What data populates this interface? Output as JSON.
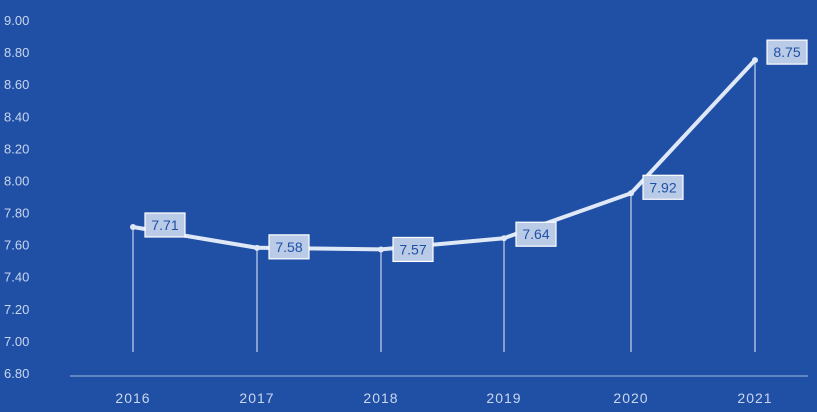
{
  "colors": {
    "background": "#2050a6",
    "line": "#dfe8f7",
    "tick_text": "#c9d6ee",
    "label_box": "#b9cbe6",
    "label_text": "#2050a6"
  },
  "chart_data": {
    "type": "line",
    "title": "",
    "xlabel": "",
    "ylabel": "",
    "categories": [
      "2016",
      "2017",
      "2018",
      "2019",
      "2020",
      "2021"
    ],
    "series": [
      {
        "values": [
          7.71,
          7.58,
          7.57,
          7.64,
          7.92,
          8.75
        ]
      }
    ],
    "data_labels": [
      "7.71",
      "7.58",
      "7.57",
      "7.64",
      "7.92",
      "8.75"
    ],
    "ylim": [
      6.8,
      9.0
    ],
    "y_ticks": [
      "6.80",
      "7.00",
      "7.20",
      "7.40",
      "7.60",
      "7.80",
      "8.00",
      "8.20",
      "8.40",
      "8.60",
      "8.80",
      "9.00"
    ],
    "drop_lines": true,
    "grid": false,
    "legend": "none"
  }
}
